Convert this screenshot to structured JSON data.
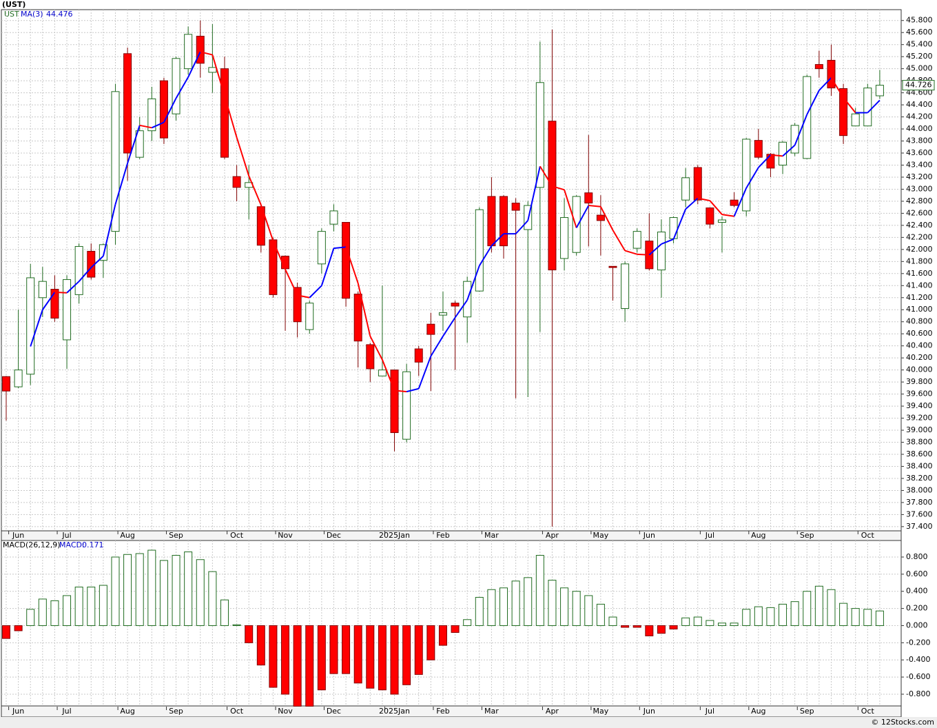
{
  "chart_data": [
    {
      "type": "candlestick",
      "title": "(UST)",
      "symbol": "UST",
      "categories": [
        null,
        "Jun",
        null,
        null,
        null,
        "Jul",
        null,
        null,
        null,
        null,
        "Aug",
        null,
        null,
        null,
        "Sep",
        null,
        null,
        null,
        null,
        "Oct",
        null,
        null,
        null,
        "Nov",
        null,
        null,
        null,
        "Dec",
        null,
        null,
        null,
        null,
        "2025Jan",
        null,
        null,
        null,
        "Feb",
        null,
        null,
        null,
        "Mar",
        null,
        null,
        null,
        null,
        "Apr",
        null,
        null,
        null,
        "May",
        null,
        null,
        null,
        "Jun",
        null,
        null,
        null,
        null,
        "Jul",
        null,
        null,
        null,
        "Aug",
        null,
        null,
        null,
        "Sep",
        null,
        null,
        null,
        null,
        "Oct",
        null
      ],
      "open": [
        39.89,
        39.72,
        39.93,
        41.2,
        41.34,
        40.5,
        41.25,
        41.97,
        41.82,
        42.3,
        45.25,
        43.53,
        43.97,
        44.8,
        44.25,
        45.0,
        45.54,
        44.94,
        45.0,
        43.21,
        43.03,
        42.71,
        42.16,
        41.89,
        41.37,
        40.67,
        41.76,
        42.42,
        42.45,
        41.26,
        40.42,
        39.9,
        40.0,
        38.85,
        40.35,
        40.76,
        40.91,
        41.11,
        40.88,
        41.31,
        42.88,
        42.88,
        42.77,
        42.33,
        43.03,
        44.13,
        41.85,
        41.95,
        42.94,
        42.57,
        41.72,
        41.02,
        42.02,
        42.14,
        41.66,
        42.18,
        42.82,
        43.36,
        42.69,
        42.45,
        42.82,
        42.64,
        43.81,
        43.58,
        43.4,
        43.6,
        43.51,
        45.07,
        45.14,
        44.67,
        44.05,
        44.05,
        44.55
      ],
      "high": [
        39.9,
        41.0,
        41.76,
        41.71,
        41.57,
        41.57,
        42.1,
        42.1,
        42.1,
        44.75,
        45.35,
        44.2,
        44.7,
        44.85,
        45.2,
        45.7,
        45.8,
        45.74,
        45.2,
        43.4,
        43.4,
        42.75,
        42.2,
        41.9,
        41.45,
        41.15,
        42.35,
        42.75,
        42.45,
        41.3,
        40.45,
        41.4,
        40.0,
        40.1,
        40.4,
        40.95,
        41.3,
        41.15,
        41.55,
        42.7,
        43.2,
        42.9,
        42.85,
        42.8,
        45.45,
        45.65,
        42.85,
        42.9,
        43.9,
        42.9,
        41.72,
        41.8,
        42.35,
        42.6,
        42.5,
        42.55,
        43.35,
        43.4,
        42.7,
        42.55,
        42.95,
        43.85,
        44.0,
        43.6,
        43.8,
        44.1,
        44.9,
        45.3,
        45.4,
        44.75,
        44.35,
        44.75,
        44.98
      ],
      "low": [
        39.16,
        39.7,
        39.75,
        40.88,
        40.8,
        40.02,
        41.1,
        41.5,
        41.53,
        42.08,
        43.14,
        43.5,
        43.8,
        43.75,
        44.14,
        44.9,
        44.85,
        44.6,
        43.5,
        42.8,
        42.5,
        41.95,
        41.2,
        40.65,
        40.54,
        40.6,
        41.6,
        42.3,
        41.05,
        40.04,
        39.8,
        39.9,
        38.65,
        38.8,
        39.9,
        39.65,
        40.65,
        40.0,
        40.45,
        41.3,
        41.95,
        41.85,
        39.53,
        39.55,
        40.63,
        37.4,
        41.65,
        41.9,
        42.05,
        41.9,
        41.15,
        40.8,
        41.95,
        41.65,
        41.2,
        42.1,
        42.7,
        42.75,
        42.35,
        41.95,
        42.7,
        42.55,
        43.5,
        43.2,
        43.25,
        43.55,
        43.5,
        44.85,
        44.55,
        43.75,
        44.05,
        44.05,
        44.5
      ],
      "close": [
        39.65,
        40.0,
        41.53,
        41.47,
        40.86,
        41.5,
        42.05,
        41.54,
        42.08,
        44.62,
        43.6,
        43.97,
        44.5,
        43.85,
        45.17,
        45.57,
        45.09,
        45.02,
        43.53,
        43.03,
        43.11,
        42.07,
        41.25,
        41.68,
        40.8,
        41.11,
        42.3,
        42.64,
        41.19,
        40.48,
        40.02,
        40.0,
        38.96,
        39.97,
        40.13,
        40.59,
        40.95,
        41.06,
        41.47,
        42.66,
        42.06,
        42.06,
        42.65,
        42.73,
        44.77,
        41.66,
        42.53,
        42.88,
        42.77,
        42.48,
        41.7,
        41.76,
        42.3,
        41.68,
        42.29,
        42.53,
        43.19,
        42.82,
        42.42,
        42.49,
        42.73,
        43.83,
        43.53,
        43.35,
        43.78,
        44.06,
        44.87,
        45.0,
        44.68,
        43.89,
        44.25,
        44.68,
        44.726
      ],
      "up_color": "#1f6b1f",
      "down_color": "#ff0000",
      "down_wick_color": "#800000",
      "ma": {
        "name": "MA(3)",
        "up_color": "#0000ff",
        "down_color": "#ff0000",
        "values": [
          null,
          null,
          40.39,
          41.0,
          41.29,
          41.28,
          41.47,
          41.7,
          41.89,
          42.75,
          43.43,
          44.06,
          44.02,
          44.11,
          44.51,
          44.86,
          45.28,
          45.23,
          44.55,
          43.86,
          43.22,
          42.74,
          42.14,
          41.67,
          41.24,
          41.2,
          41.4,
          42.02,
          42.04,
          41.44,
          40.56,
          40.17,
          39.66,
          39.64,
          39.69,
          40.23,
          40.56,
          40.87,
          41.16,
          41.73,
          42.06,
          42.26,
          42.26,
          42.48,
          43.38,
          43.05,
          42.99,
          42.36,
          42.73,
          42.71,
          42.32,
          41.98,
          41.92,
          41.91,
          42.09,
          42.17,
          42.67,
          42.85,
          42.81,
          42.58,
          42.55,
          43.02,
          43.36,
          43.57,
          43.55,
          43.73,
          44.24,
          44.64,
          44.85,
          44.52,
          44.27,
          44.27,
          44.476
        ]
      },
      "ylim": [
        37.33,
        45.98
      ],
      "yticks": [
        {
          "value": 37.4,
          "label": "37.400"
        },
        {
          "value": 37.6,
          "label": "37.600"
        },
        {
          "value": 37.8,
          "label": "37.800"
        },
        {
          "value": 38.0,
          "label": "38.000"
        },
        {
          "value": 38.2,
          "label": "38.200"
        },
        {
          "value": 38.4,
          "label": "38.400"
        },
        {
          "value": 38.6,
          "label": "38.600"
        },
        {
          "value": 38.8,
          "label": "38.800"
        },
        {
          "value": 39.0,
          "label": "39.000"
        },
        {
          "value": 39.2,
          "label": "39.200"
        },
        {
          "value": 39.4,
          "label": "39.400"
        },
        {
          "value": 39.6,
          "label": "39.600"
        },
        {
          "value": 39.8,
          "label": "39.800"
        },
        {
          "value": 40.0,
          "label": "40.000"
        },
        {
          "value": 40.2,
          "label": "40.200"
        },
        {
          "value": 40.4,
          "label": "40.400"
        },
        {
          "value": 40.6,
          "label": "40.600"
        },
        {
          "value": 40.8,
          "label": "40.800"
        },
        {
          "value": 41.0,
          "label": "41.000"
        },
        {
          "value": 41.2,
          "label": "41.200"
        },
        {
          "value": 41.4,
          "label": "41.400"
        },
        {
          "value": 41.6,
          "label": "41.600"
        },
        {
          "value": 41.8,
          "label": "41.800"
        },
        {
          "value": 42.0,
          "label": "42.000"
        },
        {
          "value": 42.2,
          "label": "42.200"
        },
        {
          "value": 42.4,
          "label": "42.400"
        },
        {
          "value": 42.6,
          "label": "42.600"
        },
        {
          "value": 42.8,
          "label": "42.800"
        },
        {
          "value": 43.0,
          "label": "43.000"
        },
        {
          "value": 43.2,
          "label": "43.200"
        },
        {
          "value": 43.4,
          "label": "43.400"
        },
        {
          "value": 43.6,
          "label": "43.600"
        },
        {
          "value": 43.8,
          "label": "43.800"
        },
        {
          "value": 44.0,
          "label": "44.000"
        },
        {
          "value": 44.2,
          "label": "44.200"
        },
        {
          "value": 44.4,
          "label": "44.400"
        },
        {
          "value": 44.6,
          "label": "44.600"
        },
        {
          "value": 44.8,
          "label": "44.800"
        },
        {
          "value": 45.0,
          "label": "45.000"
        },
        {
          "value": 45.2,
          "label": "45.200"
        },
        {
          "value": 45.4,
          "label": "45.400"
        },
        {
          "value": 45.6,
          "label": "45.600"
        },
        {
          "value": 45.8,
          "label": "45.800"
        }
      ],
      "grid": true
    },
    {
      "type": "bar",
      "title": "MACD(26,12,9)",
      "current_prefix": "MACD:",
      "values": [
        -0.15,
        -0.06,
        0.19,
        0.31,
        0.29,
        0.35,
        0.45,
        0.45,
        0.47,
        0.8,
        0.83,
        0.84,
        0.88,
        0.76,
        0.82,
        0.86,
        0.77,
        0.63,
        0.3,
        0.01,
        -0.2,
        -0.46,
        -0.72,
        -0.8,
        -0.94,
        -0.94,
        -0.75,
        -0.56,
        -0.56,
        -0.67,
        -0.73,
        -0.75,
        -0.8,
        -0.69,
        -0.57,
        -0.4,
        -0.23,
        -0.08,
        0.07,
        0.33,
        0.42,
        0.44,
        0.52,
        0.56,
        0.82,
        0.53,
        0.44,
        0.4,
        0.35,
        0.25,
        0.1,
        -0.02,
        -0.02,
        -0.12,
        -0.09,
        -0.04,
        0.09,
        0.1,
        0.06,
        0.03,
        0.03,
        0.19,
        0.22,
        0.21,
        0.25,
        0.28,
        0.4,
        0.46,
        0.42,
        0.26,
        0.2,
        0.19,
        0.171
      ],
      "up_color": "#1f6b1f",
      "down_color": "#ff0000",
      "ylim": [
        -0.937,
        0.993
      ],
      "yticks": [
        {
          "value": -0.8,
          "label": "-0.800"
        },
        {
          "value": -0.6,
          "label": "-0.600"
        },
        {
          "value": -0.4,
          "label": "-0.400"
        },
        {
          "value": -0.2,
          "label": "-0.200"
        },
        {
          "value": 0,
          "label": "0.000"
        },
        {
          "value": 0.2,
          "label": "0.200"
        },
        {
          "value": 0.4,
          "label": "0.400"
        },
        {
          "value": 0.6,
          "label": "0.600"
        },
        {
          "value": 0.8,
          "label": "0.800"
        }
      ],
      "grid": true
    }
  ],
  "credit": "© 12Stocks.com"
}
